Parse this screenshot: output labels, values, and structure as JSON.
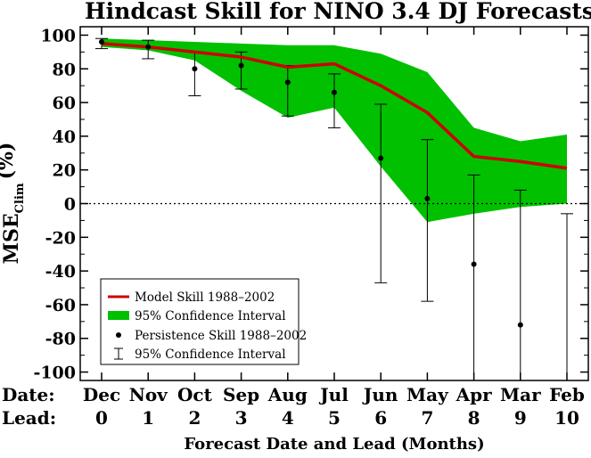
{
  "chart_data": {
    "type": "line",
    "title": "Hindcast Skill for NINO 3.4 DJ Forecasts",
    "ylabel_main": "MSE",
    "ylabel_sub": "Clim",
    "ylabel_unit": "(%)",
    "xlabel": "Forecast Date and Lead (Months)",
    "row_label_date": "Date:",
    "row_label_lead": "Lead:",
    "dates": [
      "Dec",
      "Nov",
      "Oct",
      "Sep",
      "Aug",
      "Jul",
      "Jun",
      "May",
      "Apr",
      "Mar",
      "Feb"
    ],
    "leads": [
      "0",
      "1",
      "2",
      "3",
      "4",
      "5",
      "6",
      "7",
      "8",
      "9",
      "10"
    ],
    "ylim": [
      -105,
      105
    ],
    "yticks": [
      -100,
      -80,
      -60,
      -40,
      -20,
      0,
      20,
      40,
      60,
      80,
      100
    ],
    "model_skill": {
      "name": "Model Skill 1988–2002",
      "color": "#cc0000",
      "values": [
        95,
        93,
        90,
        87,
        81,
        83,
        70,
        54,
        28,
        25,
        21
      ]
    },
    "model_ci": {
      "name": "95% Confidence Interval",
      "color": "#00c000",
      "upper": [
        98,
        97,
        96,
        95,
        94,
        94,
        89,
        78,
        45,
        37,
        41
      ],
      "lower": [
        93,
        91,
        85,
        67,
        51,
        57,
        22,
        -11,
        -6,
        -2,
        0
      ]
    },
    "persistence_skill": {
      "name": "Persistence Skill 1988–2002",
      "color": "#000000",
      "values": [
        96,
        93,
        80,
        82,
        72,
        66,
        27,
        3,
        -36,
        -72,
        null
      ]
    },
    "persistence_ci": {
      "name": "95% Confidence Interval",
      "upper": [
        98,
        97,
        90,
        90,
        82,
        77,
        59,
        38,
        17,
        8,
        -6
      ],
      "lower": [
        92,
        86,
        64,
        68,
        52,
        45,
        -47,
        -58,
        -105,
        -105,
        -105
      ]
    }
  }
}
